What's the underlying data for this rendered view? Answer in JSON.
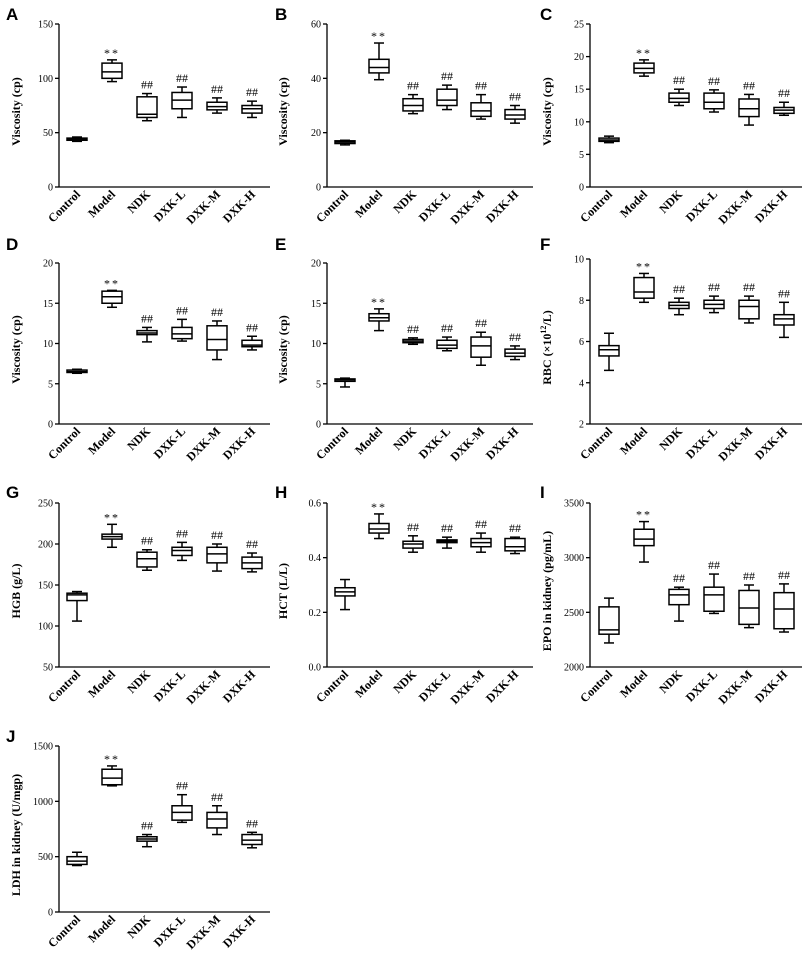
{
  "chart_data": [
    {
      "type": "boxplot",
      "panel": "A",
      "ylabel": "Viscosity (cp)",
      "ylim": [
        0,
        150
      ],
      "yticks": [
        0,
        50,
        100,
        150
      ],
      "categories": [
        "Control",
        "Model",
        "NDK",
        "DXK-L",
        "DXK-M",
        "DXK-H"
      ],
      "boxes": [
        [
          42,
          43,
          44,
          45,
          46
        ],
        [
          97,
          100,
          106,
          114,
          117
        ],
        [
          61,
          64,
          67,
          83,
          86
        ],
        [
          64,
          72,
          80,
          87,
          92
        ],
        [
          68,
          71,
          74,
          78,
          82
        ],
        [
          64,
          68,
          72,
          75,
          79
        ]
      ],
      "sig": [
        "",
        "**",
        "##",
        "##",
        "##",
        "##"
      ]
    },
    {
      "type": "boxplot",
      "panel": "B",
      "ylabel": "Viscosity (cp)",
      "ylim": [
        0,
        60
      ],
      "yticks": [
        0,
        20,
        40,
        60
      ],
      "categories": [
        "Control",
        "Model",
        "NDK",
        "DXK-L",
        "DXK-M",
        "DXK-H"
      ],
      "boxes": [
        [
          15.5,
          16,
          16.5,
          17,
          17.2
        ],
        [
          39.5,
          42,
          44,
          47,
          53
        ],
        [
          27,
          28,
          30,
          32.5,
          34
        ],
        [
          28.5,
          30,
          32,
          36,
          37.5
        ],
        [
          25,
          26,
          28,
          31,
          34
        ],
        [
          23.5,
          25,
          26.5,
          28.5,
          30
        ]
      ],
      "sig": [
        "",
        "**",
        "##",
        "##",
        "##",
        "##"
      ]
    },
    {
      "type": "boxplot",
      "panel": "C",
      "ylabel": "Viscosity (cp)",
      "ylim": [
        0,
        25
      ],
      "yticks": [
        0,
        5,
        10,
        15,
        20,
        25
      ],
      "categories": [
        "Control",
        "Model",
        "NDK",
        "DXK-L",
        "DXK-M",
        "DXK-H"
      ],
      "boxes": [
        [
          6.8,
          7,
          7.2,
          7.5,
          7.8
        ],
        [
          17,
          17.5,
          18.2,
          19,
          19.5
        ],
        [
          12.5,
          13,
          13.6,
          14.4,
          15
        ],
        [
          11.5,
          12,
          13,
          14.4,
          14.9
        ],
        [
          9.5,
          10.8,
          12,
          13.5,
          14.2
        ],
        [
          11,
          11.3,
          11.8,
          12.2,
          13
        ]
      ],
      "sig": [
        "",
        "**",
        "##",
        "##",
        "##",
        "##"
      ]
    },
    {
      "type": "boxplot",
      "panel": "D",
      "ylabel": "Viscosity (cp)",
      "ylim": [
        0,
        20
      ],
      "yticks": [
        0,
        5,
        10,
        15,
        20
      ],
      "categories": [
        "Control",
        "Model",
        "NDK",
        "DXK-L",
        "DXK-M",
        "DXK-H"
      ],
      "boxes": [
        [
          6.3,
          6.4,
          6.5,
          6.7,
          6.8
        ],
        [
          14.5,
          15,
          15.8,
          16.5,
          16.6
        ],
        [
          10.2,
          11.1,
          11.3,
          11.6,
          12
        ],
        [
          10.3,
          10.6,
          11.2,
          12,
          13
        ],
        [
          8,
          9.2,
          10.5,
          12.2,
          12.8
        ],
        [
          9.2,
          9.6,
          9.8,
          10.4,
          10.9
        ]
      ],
      "sig": [
        "",
        "**",
        "##",
        "##",
        "##",
        "##"
      ]
    },
    {
      "type": "boxplot",
      "panel": "E",
      "ylabel": "Viscosity (cp)",
      "ylim": [
        0,
        20
      ],
      "yticks": [
        0,
        5,
        10,
        15,
        20
      ],
      "categories": [
        "Control",
        "Model",
        "NDK",
        "DXK-L",
        "DXK-M",
        "DXK-H"
      ],
      "boxes": [
        [
          4.6,
          5.3,
          5.5,
          5.6,
          5.7
        ],
        [
          11.6,
          12.8,
          13.2,
          13.7,
          14.3
        ],
        [
          9.9,
          10.1,
          10.3,
          10.5,
          10.7
        ],
        [
          9.1,
          9.4,
          9.8,
          10.4,
          10.8
        ],
        [
          7.3,
          8.3,
          9.7,
          10.8,
          11.4
        ],
        [
          8,
          8.4,
          8.8,
          9.3,
          9.7
        ]
      ],
      "sig": [
        "",
        "**",
        "##",
        "##",
        "##",
        "##"
      ]
    },
    {
      "type": "boxplot",
      "panel": "F",
      "ylabel": "RBC (×10^12/L)",
      "ylim": [
        2,
        10
      ],
      "yticks": [
        2,
        4,
        6,
        8,
        10
      ],
      "categories": [
        "Control",
        "Model",
        "NDK",
        "DXK-L",
        "DXK-M",
        "DXK-H"
      ],
      "boxes": [
        [
          4.6,
          5.3,
          5.6,
          5.8,
          6.4
        ],
        [
          7.9,
          8.1,
          8.4,
          9.1,
          9.3
        ],
        [
          7.3,
          7.6,
          7.75,
          7.9,
          8.1
        ],
        [
          7.4,
          7.6,
          7.8,
          8,
          8.2
        ],
        [
          6.9,
          7.1,
          7.7,
          8,
          8.2
        ],
        [
          6.2,
          6.8,
          7.1,
          7.3,
          7.9
        ]
      ],
      "sig": [
        "",
        "**",
        "##",
        "##",
        "##",
        "##"
      ]
    },
    {
      "type": "boxplot",
      "panel": "G",
      "ylabel": "HGB (g/L)",
      "ylim": [
        50,
        250
      ],
      "yticks": [
        50,
        100,
        150,
        200,
        250
      ],
      "categories": [
        "Control",
        "Model",
        "NDK",
        "DXK-L",
        "DXK-M",
        "DXK-H"
      ],
      "boxes": [
        [
          106,
          131,
          138,
          140,
          142
        ],
        [
          196,
          206,
          209,
          212,
          224
        ],
        [
          168,
          172,
          182,
          190,
          193
        ],
        [
          180,
          186,
          192,
          196,
          202
        ],
        [
          167,
          177,
          188,
          196,
          200
        ],
        [
          166,
          170,
          177,
          184,
          189
        ]
      ],
      "sig": [
        "",
        "**",
        "##",
        "##",
        "##",
        "##"
      ]
    },
    {
      "type": "boxplot",
      "panel": "H",
      "ylabel": "HCT (L/L)",
      "ylim": [
        0,
        0.6
      ],
      "yticks": [
        0.0,
        0.2,
        0.4,
        0.6
      ],
      "categories": [
        "Control",
        "Model",
        "NDK",
        "DXK-L",
        "DXK-M",
        "DXK-H"
      ],
      "boxes": [
        [
          0.21,
          0.26,
          0.275,
          0.29,
          0.32
        ],
        [
          0.47,
          0.49,
          0.505,
          0.525,
          0.56
        ],
        [
          0.42,
          0.435,
          0.45,
          0.46,
          0.48
        ],
        [
          0.435,
          0.455,
          0.46,
          0.465,
          0.475
        ],
        [
          0.42,
          0.44,
          0.455,
          0.47,
          0.49
        ],
        [
          0.415,
          0.425,
          0.44,
          0.47,
          0.475
        ]
      ],
      "sig": [
        "",
        "**",
        "##",
        "##",
        "##",
        "##"
      ]
    },
    {
      "type": "boxplot",
      "panel": "I",
      "ylabel": "EPO in kidney (pg/mL)",
      "ylim": [
        2000,
        3500
      ],
      "yticks": [
        2000,
        2500,
        3000,
        3500
      ],
      "categories": [
        "Control",
        "Model",
        "NDK",
        "DXK-L",
        "DXK-M",
        "DXK-H"
      ],
      "boxes": [
        [
          2220,
          2300,
          2340,
          2550,
          2630
        ],
        [
          2960,
          3110,
          3170,
          3260,
          3330
        ],
        [
          2420,
          2570,
          2660,
          2710,
          2730
        ],
        [
          2490,
          2510,
          2660,
          2730,
          2850
        ],
        [
          2360,
          2390,
          2540,
          2700,
          2750
        ],
        [
          2320,
          2350,
          2530,
          2680,
          2760
        ]
      ],
      "sig": [
        "",
        "**",
        "##",
        "##",
        "##",
        "##"
      ]
    },
    {
      "type": "boxplot",
      "panel": "J",
      "ylabel": "LDH in kidney (U/mgp)",
      "ylim": [
        0,
        1500
      ],
      "yticks": [
        0,
        500,
        1000,
        1500
      ],
      "categories": [
        "Control",
        "Model",
        "NDK",
        "DXK-L",
        "DXK-M",
        "DXK-H"
      ],
      "boxes": [
        [
          420,
          430,
          460,
          500,
          540
        ],
        [
          1140,
          1150,
          1210,
          1290,
          1320
        ],
        [
          590,
          640,
          660,
          680,
          700
        ],
        [
          810,
          830,
          900,
          960,
          1060
        ],
        [
          700,
          760,
          840,
          900,
          960
        ],
        [
          580,
          610,
          650,
          700,
          720
        ]
      ],
      "sig": [
        "",
        "**",
        "##",
        "##",
        "##",
        "##"
      ]
    }
  ]
}
